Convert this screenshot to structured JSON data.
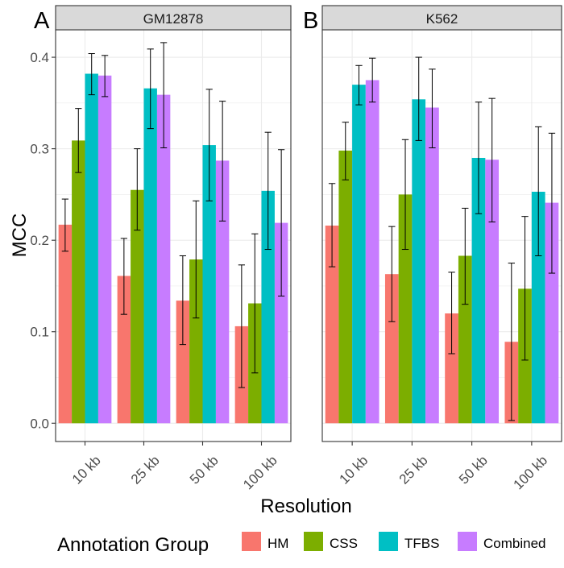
{
  "chart_data": {
    "type": "bar",
    "facets": [
      {
        "tag": "A",
        "title": "GM12878",
        "categories": [
          "10 kb",
          "25 kb",
          "50 kb",
          "100 kb"
        ],
        "series": [
          {
            "name": "HM",
            "values": [
              0.217,
              0.161,
              0.134,
              0.106
            ],
            "err_low": [
              0.188,
              0.119,
              0.086,
              0.039
            ],
            "err_high": [
              0.245,
              0.202,
              0.183,
              0.173
            ]
          },
          {
            "name": "CSS",
            "values": [
              0.309,
              0.255,
              0.179,
              0.131
            ],
            "err_low": [
              0.274,
              0.211,
              0.115,
              0.055
            ],
            "err_high": [
              0.344,
              0.3,
              0.243,
              0.207
            ]
          },
          {
            "name": "TFBS",
            "values": [
              0.382,
              0.366,
              0.304,
              0.254
            ],
            "err_low": [
              0.359,
              0.322,
              0.243,
              0.19
            ],
            "err_high": [
              0.404,
              0.409,
              0.365,
              0.318
            ]
          },
          {
            "name": "Combined",
            "values": [
              0.38,
              0.359,
              0.287,
              0.219
            ],
            "err_low": [
              0.357,
              0.301,
              0.221,
              0.139
            ],
            "err_high": [
              0.402,
              0.416,
              0.352,
              0.299
            ]
          }
        ]
      },
      {
        "tag": "B",
        "title": "K562",
        "categories": [
          "10 kb",
          "25 kb",
          "50 kb",
          "100 kb"
        ],
        "series": [
          {
            "name": "HM",
            "values": [
              0.216,
              0.163,
              0.12,
              0.089
            ],
            "err_low": [
              0.171,
              0.111,
              0.076,
              0.003
            ],
            "err_high": [
              0.262,
              0.215,
              0.165,
              0.175
            ]
          },
          {
            "name": "CSS",
            "values": [
              0.298,
              0.25,
              0.183,
              0.147
            ],
            "err_low": [
              0.266,
              0.19,
              0.13,
              0.069
            ],
            "err_high": [
              0.329,
              0.31,
              0.235,
              0.226
            ]
          },
          {
            "name": "TFBS",
            "values": [
              0.37,
              0.354,
              0.29,
              0.253
            ],
            "err_low": [
              0.348,
              0.309,
              0.229,
              0.183
            ],
            "err_high": [
              0.391,
              0.4,
              0.351,
              0.324
            ]
          },
          {
            "name": "Combined",
            "values": [
              0.375,
              0.345,
              0.288,
              0.241
            ],
            "err_low": [
              0.351,
              0.301,
              0.22,
              0.164
            ],
            "err_high": [
              0.399,
              0.387,
              0.355,
              0.317
            ]
          }
        ]
      }
    ],
    "xlabel": "Resolution",
    "ylabel": "MCC",
    "ylim": [
      -0.02,
      0.43
    ],
    "yticks": [
      0.0,
      0.1,
      0.2,
      0.3,
      0.4
    ],
    "ytick_labels": [
      "0.0",
      "0.1",
      "0.2",
      "0.3",
      "0.4"
    ],
    "grid": true,
    "legend": {
      "title": "Annotation Group",
      "position": "bottom",
      "items": [
        "HM",
        "CSS",
        "TFBS",
        "Combined"
      ]
    },
    "colors": {
      "HM": "#F8766D",
      "CSS": "#7CAE00",
      "TFBS": "#00BFC4",
      "Combined": "#C77CFF",
      "strip": "#D9D9D9",
      "grid": "#EBEBEB"
    }
  }
}
